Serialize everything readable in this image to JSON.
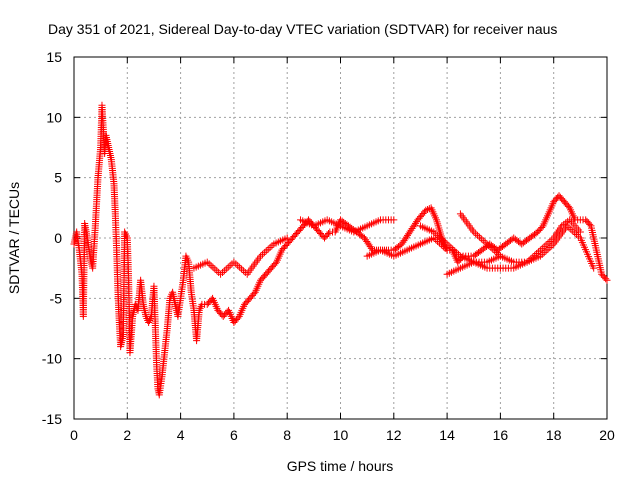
{
  "chart_data": {
    "type": "scatter",
    "title": "Day 351 of 2021, Sidereal Day-to-day VTEC variation (SDTVAR) for receiver naus",
    "xlabel": "GPS time / hours",
    "ylabel": "SDTVAR / TECUs",
    "xlim": [
      0,
      20
    ],
    "ylim": [
      -15,
      15
    ],
    "x_ticks": [
      0,
      2,
      4,
      6,
      8,
      10,
      12,
      14,
      16,
      18,
      20
    ],
    "y_ticks": [
      -15,
      -10,
      -5,
      0,
      5,
      10,
      15
    ],
    "grid": true,
    "marker": "+",
    "series": [
      {
        "name": "SDTVAR",
        "color": "#ff0000",
        "keypoints": [
          [
            0.0,
            -0.5
          ],
          [
            0.1,
            0.5
          ],
          [
            0.2,
            -1.0
          ],
          [
            0.3,
            -3.0
          ],
          [
            0.35,
            -6.5
          ],
          [
            0.4,
            1.2
          ],
          [
            0.5,
            0.0
          ],
          [
            0.6,
            -1.5
          ],
          [
            0.7,
            -2.5
          ],
          [
            0.8,
            1.0
          ],
          [
            0.9,
            5.0
          ],
          [
            1.0,
            7.5
          ],
          [
            1.05,
            11.0
          ],
          [
            1.1,
            9.0
          ],
          [
            1.15,
            7.0
          ],
          [
            1.2,
            8.5
          ],
          [
            1.3,
            7.5
          ],
          [
            1.4,
            6.5
          ],
          [
            1.5,
            4.5
          ],
          [
            1.55,
            2.0
          ],
          [
            1.6,
            -1.0
          ],
          [
            1.65,
            -4.5
          ],
          [
            1.7,
            -7.0
          ],
          [
            1.75,
            -9.0
          ],
          [
            1.85,
            -8.0
          ],
          [
            1.9,
            0.5
          ],
          [
            2.0,
            0.0
          ],
          [
            2.05,
            -3.5
          ],
          [
            2.1,
            -9.5
          ],
          [
            2.2,
            -6.5
          ],
          [
            2.3,
            -5.5
          ],
          [
            2.4,
            -6.0
          ],
          [
            2.5,
            -3.5
          ],
          [
            2.6,
            -5.5
          ],
          [
            2.7,
            -6.5
          ],
          [
            2.8,
            -7.0
          ],
          [
            2.9,
            -6.5
          ],
          [
            3.0,
            -4.0
          ],
          [
            3.1,
            -10.5
          ],
          [
            3.15,
            -12.5
          ],
          [
            3.2,
            -13.0
          ],
          [
            3.3,
            -11.5
          ],
          [
            3.4,
            -9.5
          ],
          [
            3.5,
            -7.5
          ],
          [
            3.6,
            -5.0
          ],
          [
            3.7,
            -4.5
          ],
          [
            3.8,
            -5.5
          ],
          [
            3.9,
            -6.5
          ],
          [
            4.0,
            -5.0
          ],
          [
            4.1,
            -3.5
          ],
          [
            4.2,
            -1.5
          ],
          [
            4.3,
            -2.0
          ],
          [
            4.4,
            -4.5
          ],
          [
            4.5,
            -6.0
          ],
          [
            4.6,
            -8.5
          ],
          [
            4.7,
            -6.0
          ],
          [
            4.8,
            -5.5
          ],
          [
            4.9,
            -5.5
          ],
          [
            5.0,
            -5.5
          ],
          [
            5.2,
            -5.0
          ],
          [
            5.4,
            -6.0
          ],
          [
            5.6,
            -6.5
          ],
          [
            5.8,
            -6.0
          ],
          [
            6.0,
            -7.0
          ],
          [
            6.2,
            -6.5
          ],
          [
            6.4,
            -5.5
          ],
          [
            6.6,
            -5.0
          ],
          [
            6.8,
            -4.5
          ],
          [
            7.0,
            -3.5
          ],
          [
            7.2,
            -3.0
          ],
          [
            7.4,
            -2.5
          ],
          [
            7.6,
            -2.0
          ],
          [
            7.8,
            -1.0
          ],
          [
            8.0,
            -0.5
          ],
          [
            8.2,
            0.0
          ],
          [
            8.4,
            0.5
          ],
          [
            8.6,
            1.0
          ],
          [
            8.8,
            1.5
          ],
          [
            9.0,
            1.0
          ],
          [
            9.2,
            0.5
          ],
          [
            9.4,
            0.0
          ],
          [
            9.6,
            0.5
          ],
          [
            9.8,
            0.5
          ],
          [
            10.0,
            1.5
          ],
          [
            10.3,
            1.0
          ],
          [
            10.6,
            0.5
          ],
          [
            10.9,
            0.0
          ],
          [
            11.2,
            -1.0
          ],
          [
            11.5,
            -1.0
          ],
          [
            11.8,
            -1.0
          ],
          [
            12.0,
            -1.0
          ],
          [
            12.3,
            -0.5
          ],
          [
            12.6,
            0.5
          ],
          [
            12.9,
            1.5
          ],
          [
            13.2,
            2.3
          ],
          [
            13.4,
            2.5
          ],
          [
            13.6,
            1.5
          ],
          [
            13.8,
            0.0
          ],
          [
            14.0,
            -1.0
          ],
          [
            14.2,
            -1.0
          ],
          [
            14.4,
            -2.0
          ],
          [
            14.6,
            -1.5
          ],
          [
            14.8,
            -1.5
          ],
          [
            15.0,
            -1.5
          ],
          [
            15.3,
            -1.0
          ],
          [
            15.6,
            -0.5
          ],
          [
            15.9,
            -1.0
          ],
          [
            16.2,
            -0.5
          ],
          [
            16.5,
            0.0
          ],
          [
            16.8,
            -0.5
          ],
          [
            17.1,
            0.0
          ],
          [
            17.4,
            0.5
          ],
          [
            17.6,
            1.0
          ],
          [
            17.8,
            2.0
          ],
          [
            18.0,
            3.0
          ],
          [
            18.2,
            3.5
          ],
          [
            18.4,
            3.0
          ],
          [
            18.6,
            2.5
          ],
          [
            18.8,
            1.5
          ],
          [
            19.0,
            1.5
          ],
          [
            19.2,
            1.5
          ],
          [
            19.4,
            1.0
          ],
          [
            19.6,
            -1.0
          ],
          [
            19.8,
            -3.0
          ],
          [
            20.0,
            -3.5
          ]
        ],
        "secondary_traces": [
          [
            [
              4.5,
              -2.5
            ],
            [
              5.0,
              -2.0
            ],
            [
              5.5,
              -3.0
            ],
            [
              6.0,
              -2.0
            ],
            [
              6.5,
              -3.0
            ],
            [
              7.0,
              -1.5
            ],
            [
              7.5,
              -0.5
            ],
            [
              8.0,
              0.0
            ]
          ],
          [
            [
              8.5,
              1.5
            ],
            [
              9.0,
              1.0
            ],
            [
              9.5,
              1.5
            ],
            [
              10.0,
              1.0
            ],
            [
              10.5,
              0.5
            ],
            [
              11.0,
              1.0
            ],
            [
              11.5,
              1.5
            ],
            [
              12.0,
              1.5
            ]
          ],
          [
            [
              11.0,
              -1.5
            ],
            [
              11.5,
              -1.0
            ],
            [
              12.0,
              -1.5
            ],
            [
              12.5,
              -1.0
            ],
            [
              13.0,
              -0.5
            ],
            [
              13.5,
              0.0
            ],
            [
              14.0,
              -1.0
            ]
          ],
          [
            [
              13.0,
              1.0
            ],
            [
              13.5,
              0.5
            ],
            [
              14.0,
              -0.5
            ],
            [
              14.5,
              -1.5
            ],
            [
              15.0,
              -2.0
            ],
            [
              15.5,
              -2.0
            ],
            [
              16.0,
              -1.5
            ]
          ],
          [
            [
              14.5,
              2.0
            ],
            [
              15.0,
              0.5
            ],
            [
              15.5,
              -0.5
            ],
            [
              16.0,
              -1.5
            ],
            [
              16.5,
              -2.0
            ],
            [
              17.0,
              -2.0
            ],
            [
              17.5,
              -1.5
            ],
            [
              18.0,
              -0.5
            ],
            [
              18.5,
              1.0
            ],
            [
              19.0,
              0.0
            ],
            [
              19.5,
              -2.5
            ]
          ],
          [
            [
              16.0,
              -2.5
            ],
            [
              16.5,
              -2.5
            ],
            [
              17.0,
              -2.0
            ],
            [
              17.5,
              -1.0
            ],
            [
              18.0,
              0.0
            ],
            [
              18.3,
              1.0
            ],
            [
              18.6,
              1.5
            ],
            [
              19.0,
              0.5
            ]
          ],
          [
            [
              14.0,
              -3.0
            ],
            [
              14.5,
              -2.5
            ],
            [
              15.0,
              -2.0
            ],
            [
              15.5,
              -2.5
            ],
            [
              16.0,
              -2.5
            ]
          ]
        ]
      }
    ]
  }
}
